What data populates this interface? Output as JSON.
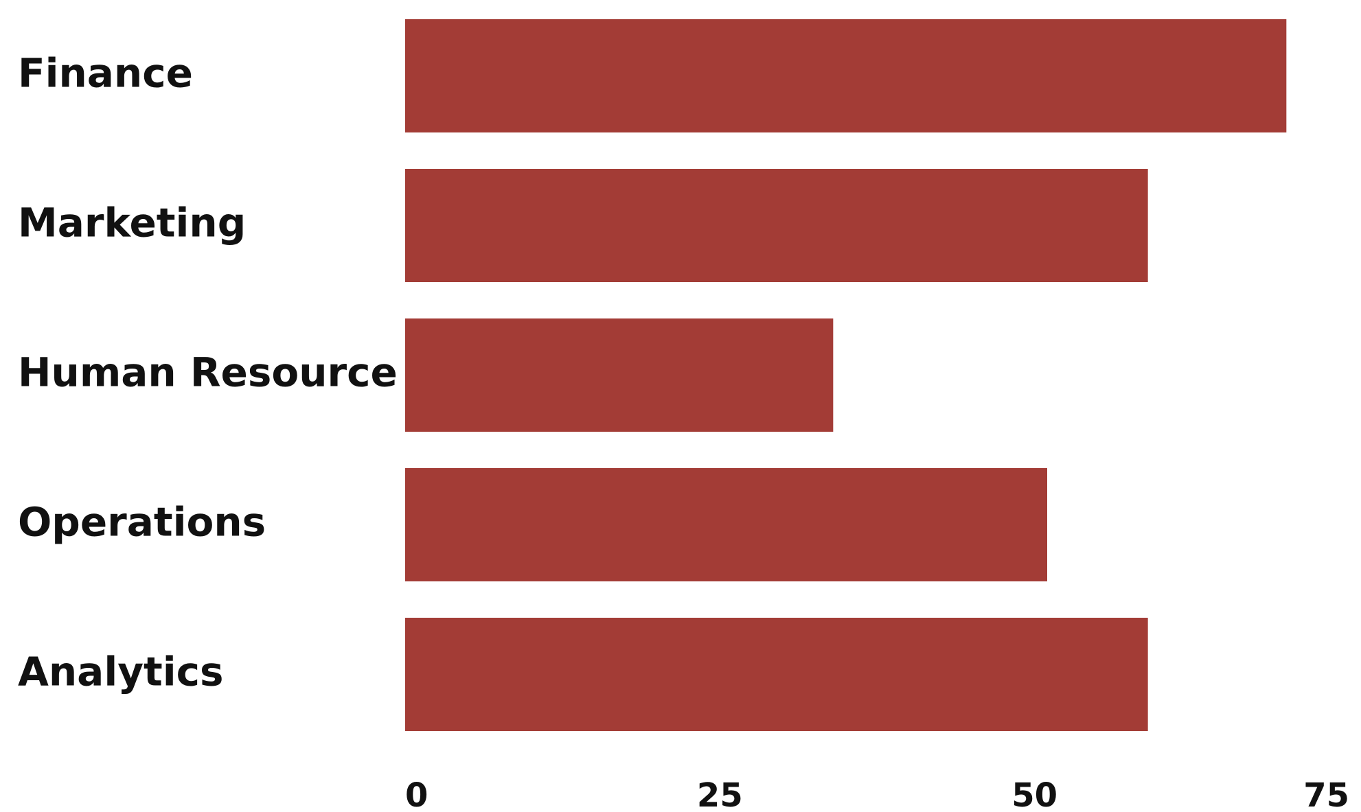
{
  "chart_data": {
    "type": "bar",
    "orientation": "horizontal",
    "categories": [
      "Finance",
      "Marketing",
      "Human Resource",
      "Operations",
      "Analytics"
    ],
    "values": [
      70,
      59,
      34,
      51,
      59
    ],
    "xlim": [
      0,
      75
    ],
    "xticks": [
      "0",
      "25",
      "50",
      "75"
    ],
    "title": "",
    "xlabel": "",
    "ylabel": "",
    "grid": false,
    "legend": "none",
    "bar_color": "#a33c36"
  }
}
